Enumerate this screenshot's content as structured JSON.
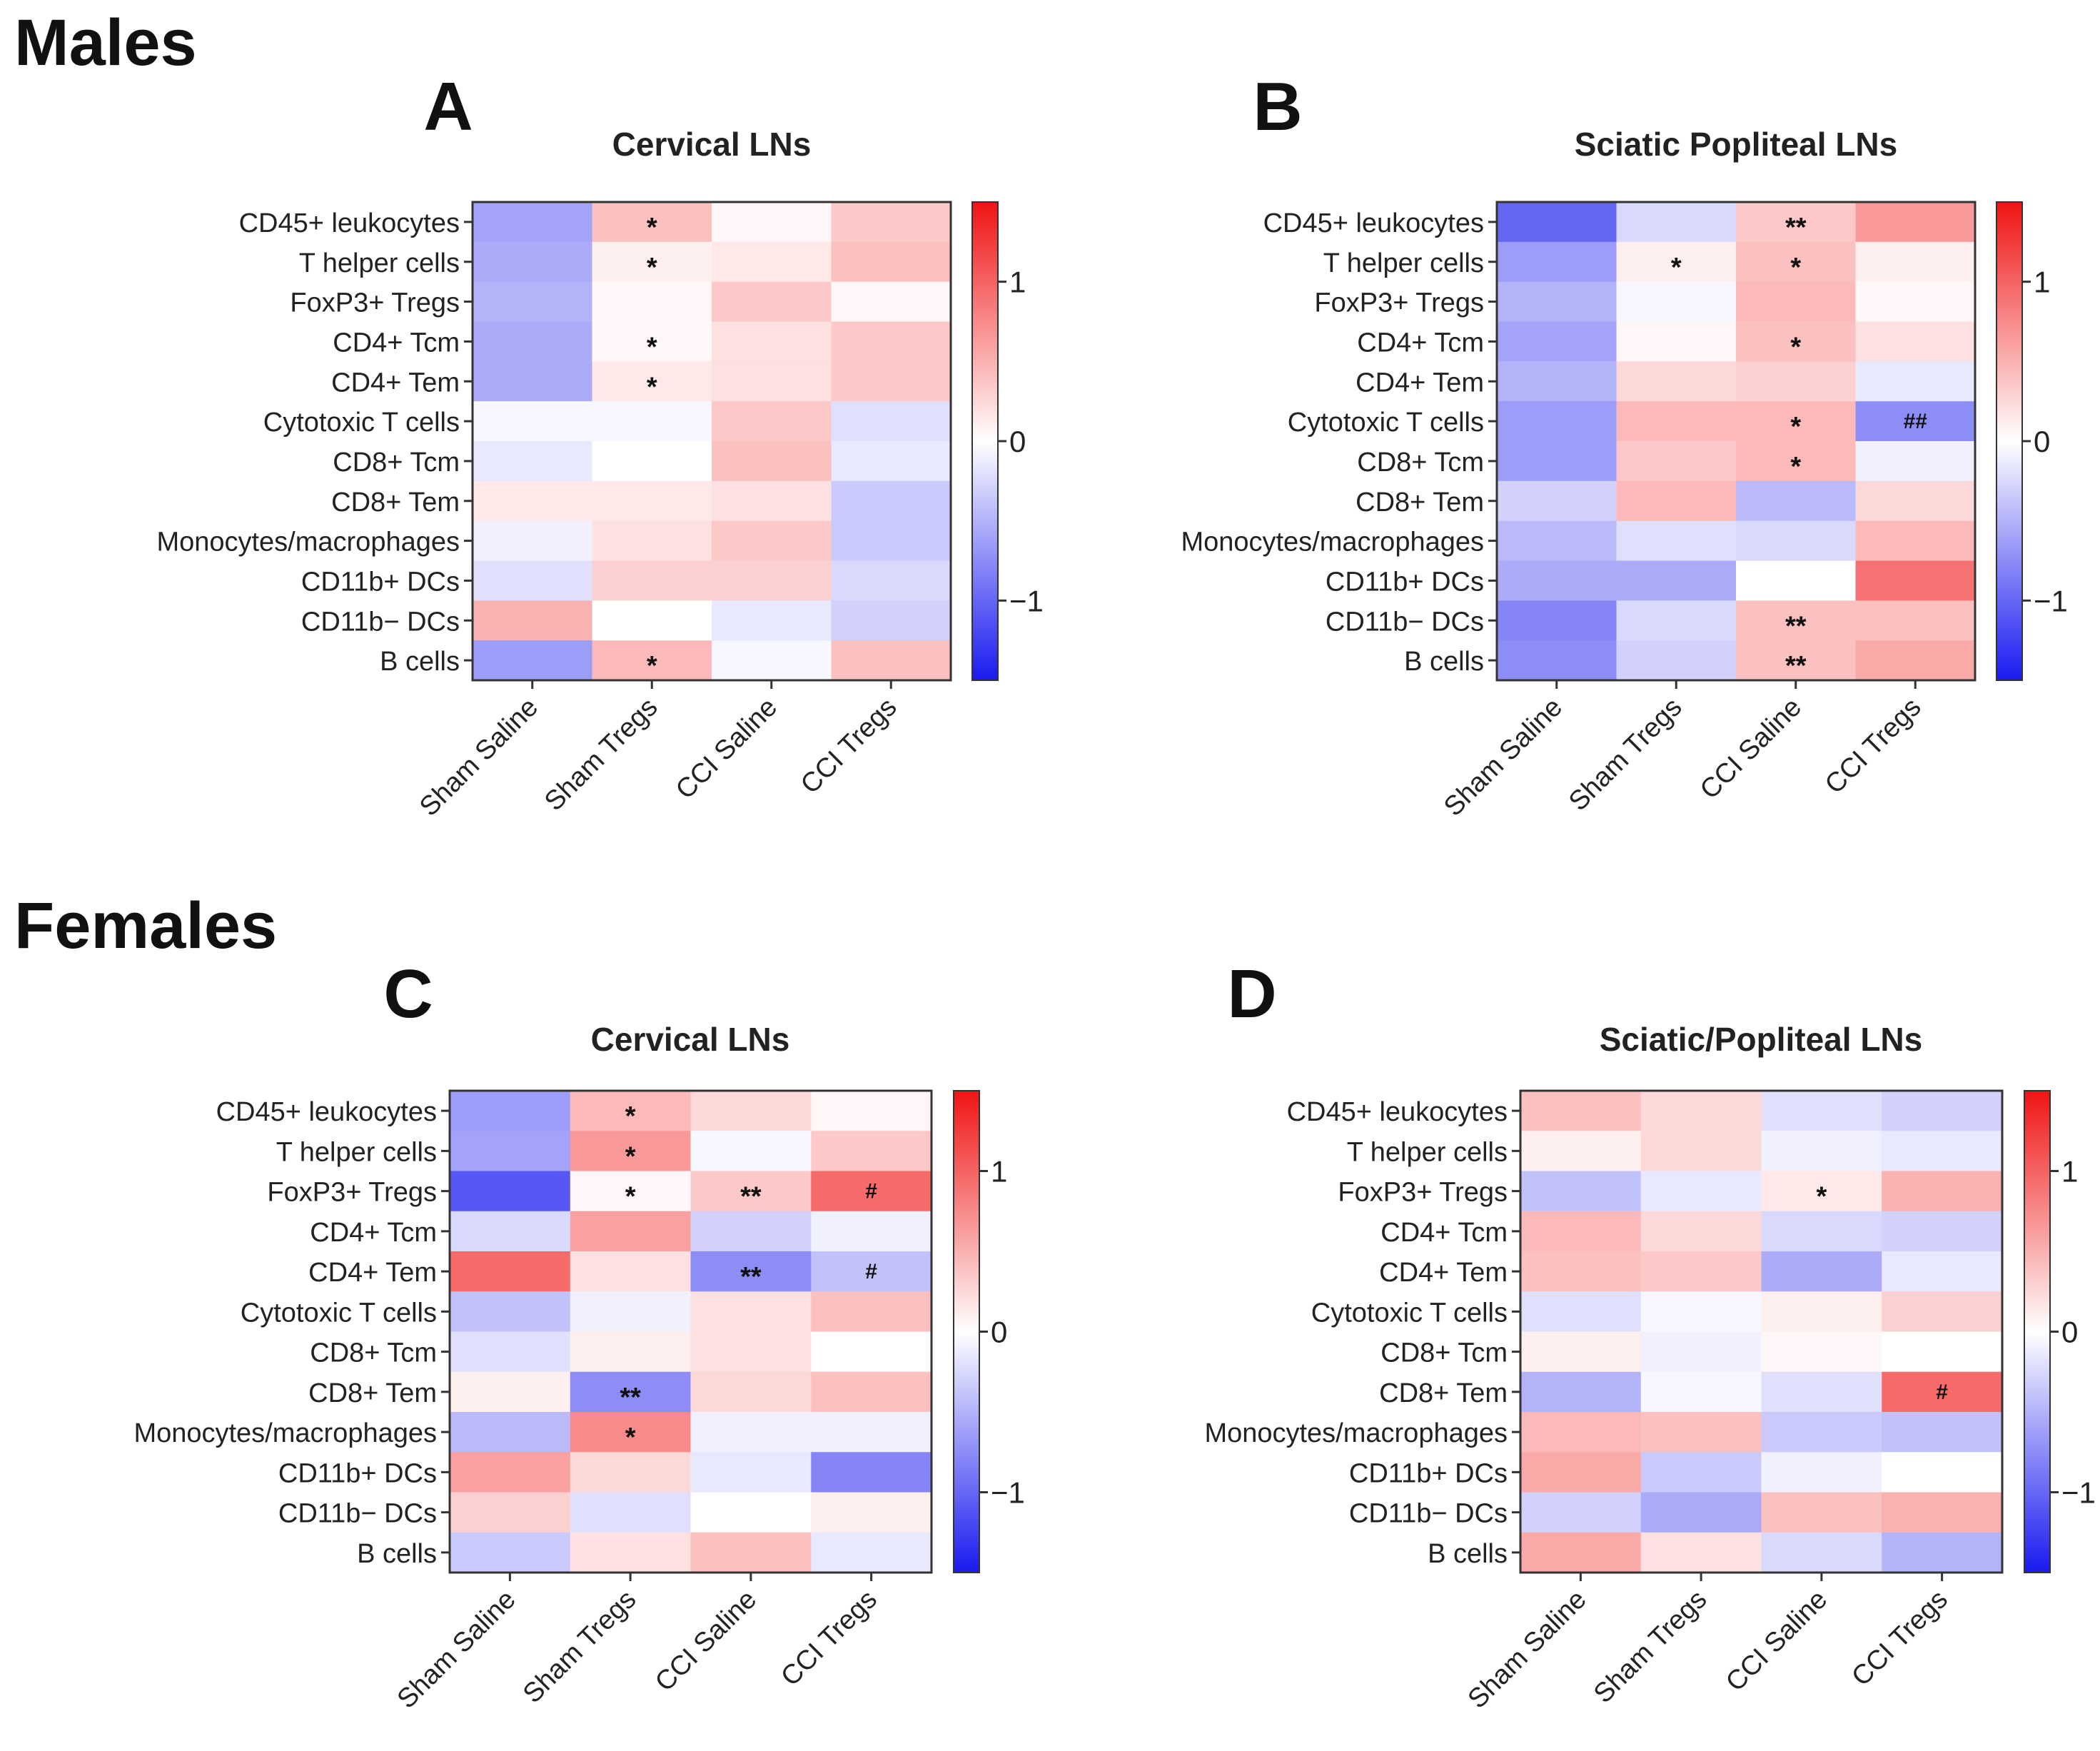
{
  "sections": {
    "males": "Males",
    "females": "Females"
  },
  "colors": {
    "negative": "#1a1af0",
    "neutral": "#ffffff",
    "positive": "#f01414"
  },
  "chart_data": [
    {
      "panel": "A",
      "type": "heatmap",
      "title": "Cervical LNs",
      "rows": [
        "CD45+ leukocytes",
        "T helper cells",
        "FoxP3+ Tregs",
        "CD4+ Tcm",
        "CD4+ Tem",
        "Cytotoxic T cells",
        "CD8+ Tcm",
        "CD8+ Tem",
        "Monocytes/macrophages",
        "CD11b+ DCs",
        "CD11b− DCs",
        "B cells"
      ],
      "columns": [
        "Sham Saline",
        "Sham Tregs",
        "CCI Saline",
        "CCI Tregs"
      ],
      "values": [
        [
          -0.6,
          0.4,
          0.05,
          0.35
        ],
        [
          -0.55,
          0.1,
          0.15,
          0.4
        ],
        [
          -0.5,
          0.05,
          0.35,
          0.05
        ],
        [
          -0.55,
          0.05,
          0.2,
          0.35
        ],
        [
          -0.55,
          0.15,
          0.2,
          0.35
        ],
        [
          -0.05,
          -0.05,
          0.35,
          -0.2
        ],
        [
          -0.15,
          0.0,
          0.4,
          -0.15
        ],
        [
          0.15,
          0.15,
          0.2,
          -0.35
        ],
        [
          -0.1,
          0.2,
          0.35,
          -0.35
        ],
        [
          -0.2,
          0.3,
          0.3,
          -0.25
        ],
        [
          0.5,
          0.0,
          -0.15,
          -0.3
        ],
        [
          -0.65,
          0.45,
          -0.05,
          0.4
        ]
      ],
      "annotations": [
        {
          "row": 0,
          "col": 1,
          "text": "*"
        },
        {
          "row": 1,
          "col": 1,
          "text": "*"
        },
        {
          "row": 3,
          "col": 1,
          "text": "*"
        },
        {
          "row": 4,
          "col": 1,
          "text": "*"
        },
        {
          "row": 11,
          "col": 1,
          "text": "*"
        }
      ],
      "colorbar": {
        "range": [
          -1.5,
          1.5
        ],
        "ticks": [
          1,
          0,
          -1
        ],
        "tick_labels": [
          "1",
          "0",
          "−1"
        ]
      }
    },
    {
      "panel": "B",
      "type": "heatmap",
      "title": "Sciatic Popliteal LNs",
      "rows": [
        "CD45+ leukocytes",
        "T helper cells",
        "FoxP3+ Tregs",
        "CD4+ Tcm",
        "CD4+ Tem",
        "Cytotoxic T cells",
        "CD8+ Tcm",
        "CD8+ Tem",
        "Monocytes/macrophages",
        "CD11b+ DCs",
        "CD11b− DCs",
        "B cells"
      ],
      "columns": [
        "Sham Saline",
        "Sham Tregs",
        "CCI Saline",
        "CCI Tregs"
      ],
      "values": [
        [
          -1.0,
          -0.25,
          0.35,
          0.65
        ],
        [
          -0.65,
          0.1,
          0.4,
          0.1
        ],
        [
          -0.5,
          -0.05,
          0.45,
          0.05
        ],
        [
          -0.6,
          0.05,
          0.4,
          0.2
        ],
        [
          -0.5,
          0.25,
          0.3,
          -0.15
        ],
        [
          -0.65,
          0.45,
          0.45,
          -0.75
        ],
        [
          -0.65,
          0.35,
          0.45,
          -0.1
        ],
        [
          -0.3,
          0.45,
          -0.45,
          0.25
        ],
        [
          -0.45,
          -0.2,
          -0.25,
          0.45
        ],
        [
          -0.55,
          -0.55,
          0.0,
          0.9
        ],
        [
          -0.8,
          -0.25,
          0.4,
          0.4
        ],
        [
          -0.75,
          -0.3,
          0.4,
          0.55
        ]
      ],
      "annotations": [
        {
          "row": 0,
          "col": 2,
          "text": "**"
        },
        {
          "row": 1,
          "col": 1,
          "text": "*"
        },
        {
          "row": 1,
          "col": 2,
          "text": "*"
        },
        {
          "row": 3,
          "col": 2,
          "text": "*"
        },
        {
          "row": 5,
          "col": 2,
          "text": "*"
        },
        {
          "row": 5,
          "col": 3,
          "text": "##"
        },
        {
          "row": 6,
          "col": 2,
          "text": "*"
        },
        {
          "row": 10,
          "col": 2,
          "text": "**"
        },
        {
          "row": 11,
          "col": 2,
          "text": "**"
        }
      ],
      "colorbar": {
        "range": [
          -1.5,
          1.5
        ],
        "ticks": [
          1,
          0,
          -1
        ],
        "tick_labels": [
          "1",
          "0",
          "−1"
        ]
      }
    },
    {
      "panel": "C",
      "type": "heatmap",
      "title": "Cervical LNs",
      "rows": [
        "CD45+ leukocytes",
        "T helper cells",
        "FoxP3+ Tregs",
        "CD4+ Tcm",
        "CD4+ Tem",
        "Cytotoxic T cells",
        "CD8+ Tcm",
        "CD8+ Tem",
        "Monocytes/macrophages",
        "CD11b+ DCs",
        "CD11b− DCs",
        "B cells"
      ],
      "columns": [
        "Sham Saline",
        "Sham Tregs",
        "CCI Saline",
        "CCI Tregs"
      ],
      "values": [
        [
          -0.65,
          0.45,
          0.25,
          0.05
        ],
        [
          -0.6,
          0.65,
          -0.05,
          0.35
        ],
        [
          -1.1,
          0.05,
          0.35,
          0.95
        ],
        [
          -0.25,
          0.6,
          -0.3,
          -0.1
        ],
        [
          0.95,
          0.2,
          -0.75,
          -0.4
        ],
        [
          -0.4,
          -0.1,
          0.2,
          0.4
        ],
        [
          -0.2,
          0.1,
          0.2,
          0.0
        ],
        [
          0.1,
          -0.75,
          0.25,
          0.4
        ],
        [
          -0.45,
          0.75,
          -0.1,
          -0.1
        ],
        [
          0.6,
          0.25,
          -0.15,
          -0.8
        ],
        [
          0.3,
          -0.2,
          0.0,
          0.1
        ],
        [
          -0.35,
          0.2,
          0.4,
          -0.15
        ]
      ],
      "annotations": [
        {
          "row": 0,
          "col": 1,
          "text": "*"
        },
        {
          "row": 1,
          "col": 1,
          "text": "*"
        },
        {
          "row": 2,
          "col": 1,
          "text": "*"
        },
        {
          "row": 2,
          "col": 2,
          "text": "**"
        },
        {
          "row": 2,
          "col": 3,
          "text": "#"
        },
        {
          "row": 4,
          "col": 2,
          "text": "**"
        },
        {
          "row": 4,
          "col": 3,
          "text": "#"
        },
        {
          "row": 7,
          "col": 1,
          "text": "**"
        },
        {
          "row": 8,
          "col": 1,
          "text": "*"
        }
      ],
      "colorbar": {
        "range": [
          -1.5,
          1.5
        ],
        "ticks": [
          1,
          0,
          -1
        ],
        "tick_labels": [
          "1",
          "0",
          "−1"
        ]
      }
    },
    {
      "panel": "D",
      "type": "heatmap",
      "title": "Sciatic/Popliteal LNs",
      "rows": [
        "CD45+ leukocytes",
        "T helper cells",
        "FoxP3+ Tregs",
        "CD4+ Tcm",
        "CD4+ Tem",
        "Cytotoxic T cells",
        "CD8+ Tcm",
        "CD8+ Tem",
        "Monocytes/macrophages",
        "CD11b+ DCs",
        "CD11b− DCs",
        "B cells"
      ],
      "columns": [
        "Sham Saline",
        "Sham Tregs",
        "CCI Saline",
        "CCI Tregs"
      ],
      "values": [
        [
          0.4,
          0.25,
          -0.2,
          -0.3
        ],
        [
          0.1,
          0.25,
          -0.1,
          -0.15
        ],
        [
          -0.4,
          -0.15,
          0.15,
          0.5
        ],
        [
          0.45,
          0.25,
          -0.25,
          -0.3
        ],
        [
          0.4,
          0.35,
          -0.55,
          -0.15
        ],
        [
          -0.2,
          -0.05,
          0.1,
          0.3
        ],
        [
          0.1,
          -0.1,
          0.05,
          0.0
        ],
        [
          -0.5,
          -0.05,
          -0.2,
          0.95
        ],
        [
          0.45,
          0.4,
          -0.35,
          -0.4
        ],
        [
          0.55,
          -0.35,
          -0.1,
          0.0
        ],
        [
          -0.3,
          -0.55,
          0.4,
          0.5
        ],
        [
          0.55,
          0.2,
          -0.25,
          -0.5
        ]
      ],
      "annotations": [
        {
          "row": 2,
          "col": 2,
          "text": "*"
        },
        {
          "row": 7,
          "col": 3,
          "text": "#"
        }
      ],
      "colorbar": {
        "range": [
          -1.5,
          1.5
        ],
        "ticks": [
          1,
          0,
          -1
        ],
        "tick_labels": [
          "1",
          "0",
          "−1"
        ]
      }
    }
  ]
}
